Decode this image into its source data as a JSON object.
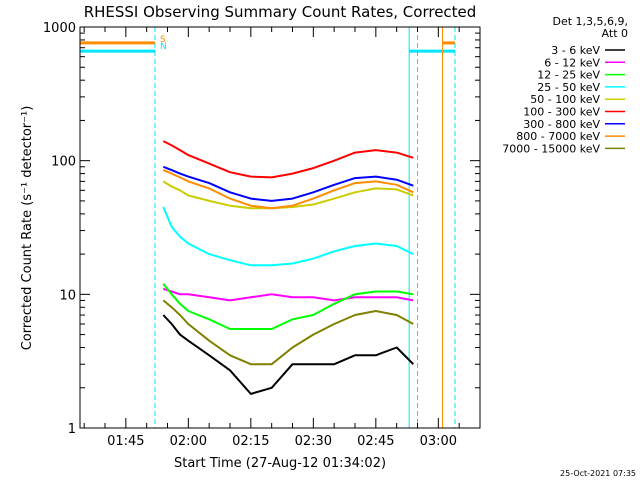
{
  "chart_data": {
    "type": "line",
    "title": "RHESSI Observing Summary Count Rates, Corrected",
    "xlabel": "Start Time (27-Aug-12 01:34:02)",
    "ylabel": "Corrected Count Rate (s⁻¹ detector⁻¹)",
    "y_scale": "log",
    "ylim": [
      1,
      1000
    ],
    "xlim": [
      "01:34",
      "03:10"
    ],
    "x_ticks": [
      "01:45",
      "02:00",
      "02:15",
      "02:30",
      "02:45",
      "03:00"
    ],
    "y_ticks": [
      "1",
      "10",
      "100",
      "1000"
    ],
    "grid": false,
    "legend_placement": "right",
    "legend_title": [
      "Det 1,3,5,6,9,",
      "Att 0"
    ],
    "timestamp": "25-Oct-2021 07:35",
    "flag_labels": [
      {
        "text": "S",
        "color": "#ff8c00"
      },
      {
        "text": "N",
        "color": "#00e5ff"
      }
    ],
    "flag_levels": [
      {
        "name": "S",
        "y": 760,
        "color": "#ff8c00",
        "segments": [
          [
            "01:34",
            "01:52"
          ],
          [
            "03:01",
            "03:04"
          ]
        ]
      },
      {
        "name": "N",
        "y": 660,
        "color": "#00e5ff",
        "segments": [
          [
            "01:34",
            "01:52"
          ],
          [
            "02:53",
            "03:04"
          ]
        ]
      }
    ],
    "markers": [
      {
        "time": "01:34",
        "color": "#00e5ff",
        "style": "solid"
      },
      {
        "time": "01:52",
        "color": "#ff8c00",
        "style": "dashed"
      },
      {
        "time": "01:52",
        "color": "#00e5ff",
        "style": "dashed"
      },
      {
        "time": "02:53",
        "color": "#00e5ff",
        "style": "solid"
      },
      {
        "time": "02:55",
        "color": "#ff8c00",
        "style": "dashed"
      },
      {
        "time": "03:01",
        "color": "#ff8c00",
        "style": "solid"
      },
      {
        "time": "03:04",
        "color": "#00e5ff",
        "style": "dashed"
      }
    ],
    "x": [
      "01:54",
      "01:56",
      "01:58",
      "02:00",
      "02:05",
      "02:10",
      "02:15",
      "02:20",
      "02:25",
      "02:30",
      "02:35",
      "02:40",
      "02:45",
      "02:50",
      "02:54"
    ],
    "series": [
      {
        "name": "3 - 6 keV",
        "color": "#000000",
        "values": [
          7,
          6,
          5,
          4.5,
          3.5,
          2.7,
          1.8,
          2,
          3,
          3,
          3,
          3.5,
          3.5,
          4,
          3
        ]
      },
      {
        "name": "6 - 12 keV",
        "color": "#ff00ff",
        "values": [
          11,
          10.5,
          10,
          10,
          9.5,
          9,
          9.5,
          10,
          9.5,
          9.5,
          9,
          9.5,
          9.5,
          9.5,
          9
        ]
      },
      {
        "name": "12 - 25 keV",
        "color": "#00ff00",
        "values": [
          12,
          10,
          8.5,
          7.5,
          6.5,
          5.5,
          5.5,
          5.5,
          6.5,
          7,
          8.5,
          10,
          10.5,
          10.5,
          10
        ]
      },
      {
        "name": "25 - 50 keV",
        "color": "#00ffff",
        "values": [
          45,
          32,
          27,
          24,
          20,
          18,
          16.5,
          16.5,
          17,
          18.5,
          21,
          23,
          24,
          23,
          20
        ]
      },
      {
        "name": "50 - 100 keV",
        "color": "#cccc00",
        "values": [
          70,
          64,
          60,
          55,
          50,
          46,
          44,
          44,
          45,
          47,
          52,
          58,
          62,
          61,
          55
        ]
      },
      {
        "name": "100 - 300 keV",
        "color": "#ff0000",
        "values": [
          140,
          130,
          120,
          110,
          95,
          82,
          76,
          75,
          80,
          88,
          100,
          115,
          120,
          115,
          105
        ]
      },
      {
        "name": "300 - 800 keV",
        "color": "#0000ff",
        "values": [
          90,
          85,
          80,
          76,
          68,
          58,
          52,
          50,
          52,
          58,
          66,
          74,
          76,
          72,
          65
        ]
      },
      {
        "name": "800 - 7000 keV",
        "color": "#ff8c00",
        "values": [
          85,
          80,
          75,
          70,
          62,
          52,
          46,
          44,
          46,
          52,
          60,
          68,
          70,
          66,
          58
        ]
      },
      {
        "name": "7000 - 15000 keV",
        "color": "#808000",
        "values": [
          9,
          8,
          7,
          6,
          4.5,
          3.5,
          3,
          3,
          4,
          5,
          6,
          7,
          7.5,
          7,
          6
        ]
      }
    ]
  }
}
